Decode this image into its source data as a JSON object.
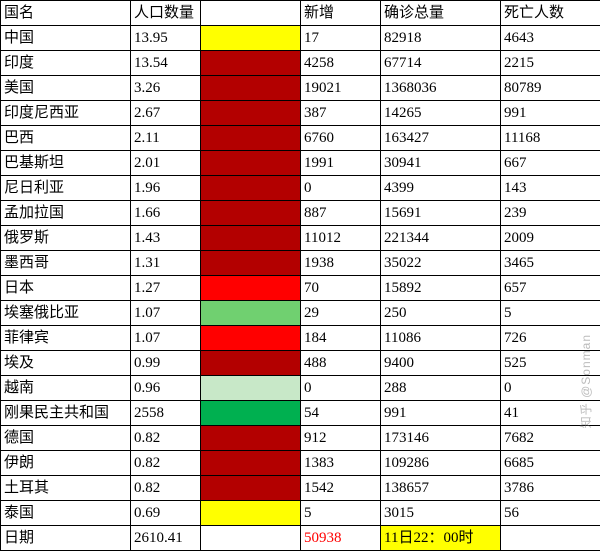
{
  "header": {
    "country": "国名",
    "population": "人口数量",
    "blank": "",
    "new": "新增",
    "total": "确诊总量",
    "deaths": "死亡人数"
  },
  "rows": [
    {
      "country": "中国",
      "pop": "13.95",
      "cell_bg": "#ffff00",
      "new": "17",
      "total": "82918",
      "deaths": "4643"
    },
    {
      "country": "印度",
      "pop": "13.54",
      "cell_bg": "#b30000",
      "new": "4258",
      "total": "67714",
      "deaths": "2215"
    },
    {
      "country": "美国",
      "pop": "3.26",
      "cell_bg": "#b30000",
      "new": "19021",
      "total": "1368036",
      "deaths": "80789"
    },
    {
      "country": "印度尼西亚",
      "pop": "2.67",
      "cell_bg": "#b30000",
      "new": "387",
      "total": "14265",
      "deaths": "991"
    },
    {
      "country": "巴西",
      "pop": "2.11",
      "cell_bg": "#b30000",
      "new": "6760",
      "total": "163427",
      "deaths": "11168"
    },
    {
      "country": "巴基斯坦",
      "pop": "2.01",
      "cell_bg": "#b30000",
      "new": "1991",
      "total": "30941",
      "deaths": "667"
    },
    {
      "country": "尼日利亚",
      "pop": "1.96",
      "cell_bg": "#b30000",
      "new": "0",
      "total": "4399",
      "deaths": "143"
    },
    {
      "country": "孟加拉国",
      "pop": "1.66",
      "cell_bg": "#b30000",
      "new": "887",
      "total": "15691",
      "deaths": "239"
    },
    {
      "country": "俄罗斯",
      "pop": "1.43",
      "cell_bg": "#b30000",
      "new": "11012",
      "total": "221344",
      "deaths": "2009"
    },
    {
      "country": "墨西哥",
      "pop": "1.31",
      "cell_bg": "#b30000",
      "new": "1938",
      "total": "35022",
      "deaths": "3465"
    },
    {
      "country": "日本",
      "pop": "1.27",
      "cell_bg": "#ff0000",
      "new": "70",
      "total": "15892",
      "deaths": "657"
    },
    {
      "country": "埃塞俄比亚",
      "pop": "1.07",
      "cell_bg": "#70d070",
      "new": "29",
      "total": "250",
      "deaths": "5"
    },
    {
      "country": "菲律宾",
      "pop": "1.07",
      "cell_bg": "#ff0000",
      "new": "184",
      "total": "11086",
      "deaths": "726"
    },
    {
      "country": "埃及",
      "pop": "0.99",
      "cell_bg": "#b30000",
      "new": "488",
      "total": "9400",
      "deaths": "525"
    },
    {
      "country": "越南",
      "pop": "0.96",
      "cell_bg": "#c8e8c8",
      "new": "0",
      "total": "288",
      "deaths": "0"
    },
    {
      "country": "刚果民主共和国",
      "pop": "2558",
      "cell_bg": "#00b050",
      "new": "54",
      "total": "991",
      "deaths": "41"
    },
    {
      "country": "德国",
      "pop": "0.82",
      "cell_bg": "#b30000",
      "new": "912",
      "total": "173146",
      "deaths": "7682"
    },
    {
      "country": "伊朗",
      "pop": "0.82",
      "cell_bg": "#b30000",
      "new": "1383",
      "total": "109286",
      "deaths": "6685"
    },
    {
      "country": "土耳其",
      "pop": "0.82",
      "cell_bg": "#b30000",
      "new": "1542",
      "total": "138657",
      "deaths": "3786"
    },
    {
      "country": "泰国",
      "pop": "0.69",
      "cell_bg": "#ffff00",
      "new": "5",
      "total": "3015",
      "deaths": "56"
    }
  ],
  "footer": {
    "label": "日期",
    "pop": "2610.41",
    "blank": "",
    "new": "50938",
    "new_color": "#ff0000",
    "total": "11日22：00时",
    "total_bg": "#ffff00",
    "deaths": ""
  },
  "watermark": "知乎 @Sonman"
}
